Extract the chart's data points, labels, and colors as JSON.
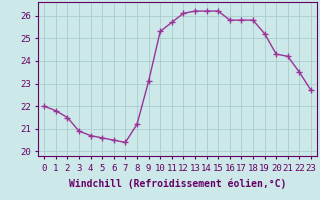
{
  "x": [
    0,
    1,
    2,
    3,
    4,
    5,
    6,
    7,
    8,
    9,
    10,
    11,
    12,
    13,
    14,
    15,
    16,
    17,
    18,
    19,
    20,
    21,
    22,
    23
  ],
  "y": [
    22.0,
    21.8,
    21.5,
    20.9,
    20.7,
    20.6,
    20.5,
    20.4,
    21.2,
    23.1,
    25.3,
    25.7,
    26.1,
    26.2,
    26.2,
    26.2,
    25.8,
    25.8,
    25.8,
    25.2,
    24.3,
    24.2,
    23.5,
    22.7
  ],
  "line_color": "#993399",
  "marker": "+",
  "marker_size": 4,
  "marker_lw": 1.0,
  "line_width": 1.0,
  "bg_color": "#bbeebb",
  "plot_bg_color": "#cce8e8",
  "grid_color": "#aacccc",
  "xlabel": "Windchill (Refroidissement éolien,°C)",
  "xlabel_fontsize": 7,
  "tick_fontsize": 6.5,
  "ylim": [
    19.8,
    26.6
  ],
  "xlim": [
    -0.5,
    23.5
  ],
  "yticks": [
    20,
    21,
    22,
    23,
    24,
    25,
    26
  ],
  "xticks": [
    0,
    1,
    2,
    3,
    4,
    5,
    6,
    7,
    8,
    9,
    10,
    11,
    12,
    13,
    14,
    15,
    16,
    17,
    18,
    19,
    20,
    21,
    22,
    23
  ],
  "spine_color": "#660066",
  "tick_color": "#660066",
  "label_color": "#660066"
}
